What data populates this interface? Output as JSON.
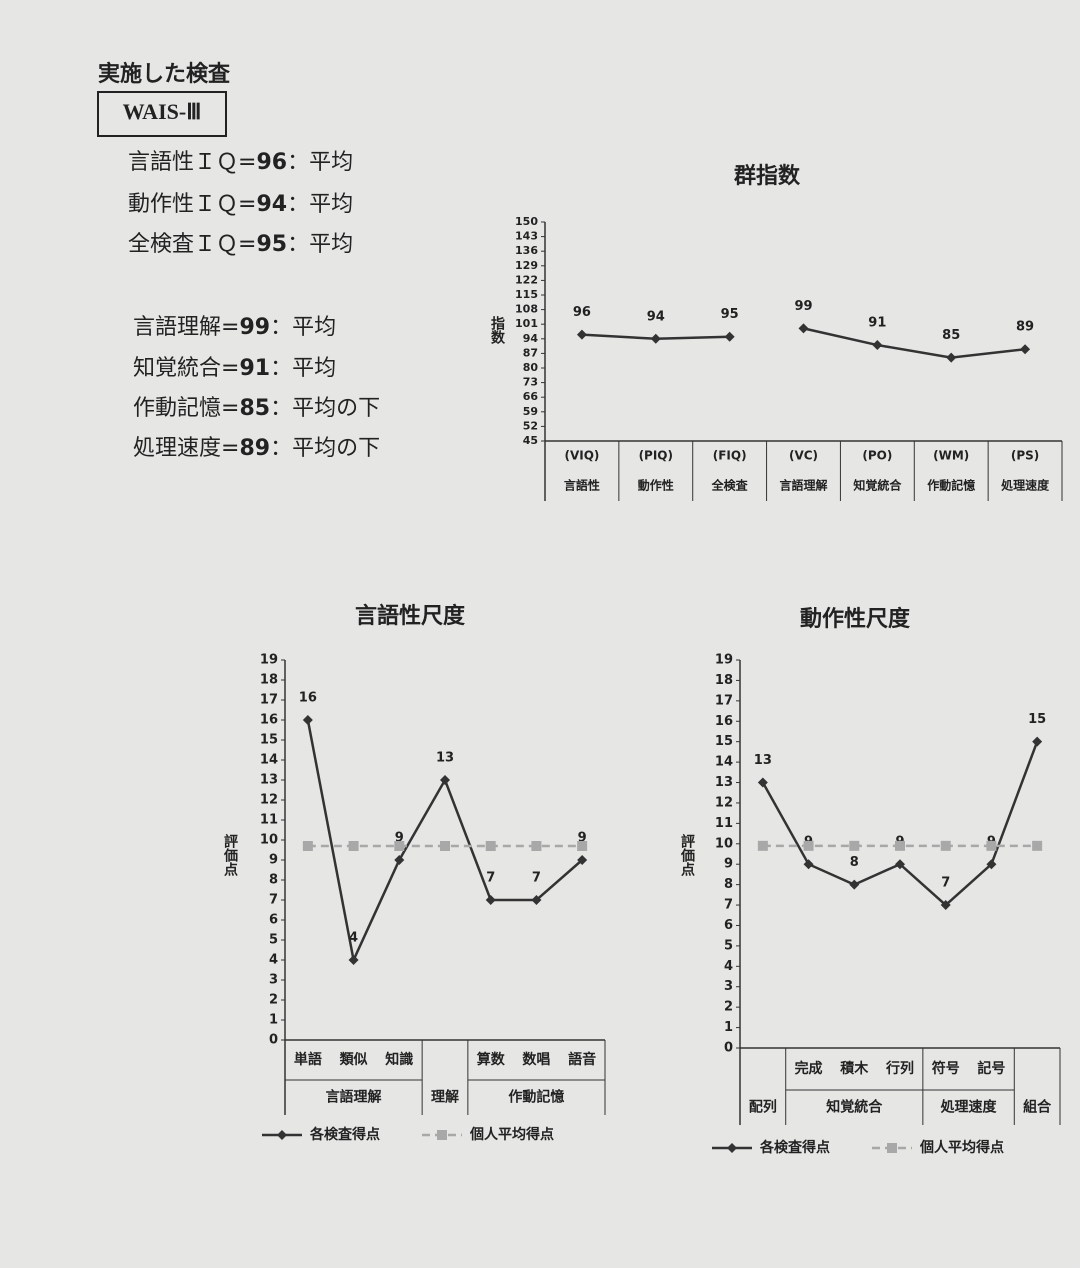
{
  "header": {
    "title": "実施した検査",
    "test": "WAIS-Ⅲ"
  },
  "iq_scores": [
    {
      "label": "言語性ＩＱ=",
      "value": 96,
      "rating": "：平均"
    },
    {
      "label": "動作性ＩＱ=",
      "value": 94,
      "rating": "：平均"
    },
    {
      "label": "全検査ＩＱ=",
      "value": 95,
      "rating": "：平均"
    }
  ],
  "index_scores": [
    {
      "label": "言語理解=",
      "value": 99,
      "rating": "：平均"
    },
    {
      "label": "知覚統合=",
      "value": 91,
      "rating": "：平均"
    },
    {
      "label": "作動記憶=",
      "value": 85,
      "rating": "：平均の下"
    },
    {
      "label": "処理速度=",
      "value": 89,
      "rating": "：平均の下"
    }
  ],
  "chart_data": [
    {
      "type": "line",
      "title": "群指数",
      "ylabel": "指数",
      "codes": [
        "(VIQ)",
        "(PIQ)",
        "(FIQ)",
        "(VC)",
        "(PO)",
        "(WM)",
        "(PS)"
      ],
      "categories": [
        "言語性",
        "動作性",
        "全検査",
        "言語理解",
        "知覚統合",
        "作動記憶",
        "処理速度"
      ],
      "series": [
        {
          "color": "#333333",
          "marker": "diamond",
          "labels": true,
          "values": [
            96,
            94,
            95,
            null,
            null,
            null,
            null
          ]
        },
        {
          "color": "#333333",
          "marker": "diamond",
          "labels": true,
          "values": [
            null,
            null,
            null,
            99,
            91,
            85,
            89
          ]
        }
      ],
      "ylim": [
        45,
        150
      ],
      "yticks": [
        45,
        52,
        59,
        66,
        73,
        80,
        87,
        94,
        101,
        108,
        115,
        122,
        129,
        136,
        143,
        150
      ]
    },
    {
      "type": "line",
      "title": "言語性尺度",
      "ylabel": "評価点",
      "groups": [
        {
          "label": "言語理解",
          "items": [
            "単語",
            "類似",
            "知識"
          ]
        },
        {
          "label": "理解",
          "items": [
            null
          ]
        },
        {
          "label": "作動記憶",
          "items": [
            "算数",
            "数唱",
            "語音"
          ]
        }
      ],
      "series": [
        {
          "name": "各検査得点",
          "color": "#333333",
          "marker": "diamond",
          "labels": true,
          "values": [
            16,
            4,
            9,
            13,
            7,
            7,
            9
          ]
        },
        {
          "name": "個人平均得点",
          "color": "#a8a8a8",
          "marker": "square",
          "dashed": true,
          "values": [
            9.7,
            9.7,
            9.7,
            9.7,
            9.7,
            9.7,
            9.7
          ]
        }
      ],
      "ylim": [
        0,
        19
      ],
      "yticks": [
        0,
        1,
        2,
        3,
        4,
        5,
        6,
        7,
        8,
        9,
        10,
        11,
        12,
        13,
        14,
        15,
        16,
        17,
        18,
        19
      ]
    },
    {
      "type": "line",
      "title": "動作性尺度",
      "ylabel": "評価点",
      "groups": [
        {
          "label": "配列",
          "items": [
            null
          ]
        },
        {
          "label": "知覚統合",
          "items": [
            "完成",
            "積木",
            "行列"
          ]
        },
        {
          "label": "処理速度",
          "items": [
            "符号",
            "記号"
          ]
        },
        {
          "label": "組合",
          "items": [
            null
          ]
        }
      ],
      "series": [
        {
          "name": "各検査得点",
          "color": "#333333",
          "marker": "diamond",
          "labels": true,
          "values": [
            13,
            9,
            8,
            9,
            7,
            9,
            15
          ]
        },
        {
          "name": "個人平均得点",
          "color": "#a8a8a8",
          "marker": "square",
          "dashed": true,
          "values": [
            9.9,
            9.9,
            9.9,
            9.9,
            9.9,
            9.9,
            9.9
          ]
        }
      ],
      "ylim": [
        0,
        19
      ],
      "yticks": [
        0,
        1,
        2,
        3,
        4,
        5,
        6,
        7,
        8,
        9,
        10,
        11,
        12,
        13,
        14,
        15,
        16,
        17,
        18,
        19
      ]
    }
  ]
}
